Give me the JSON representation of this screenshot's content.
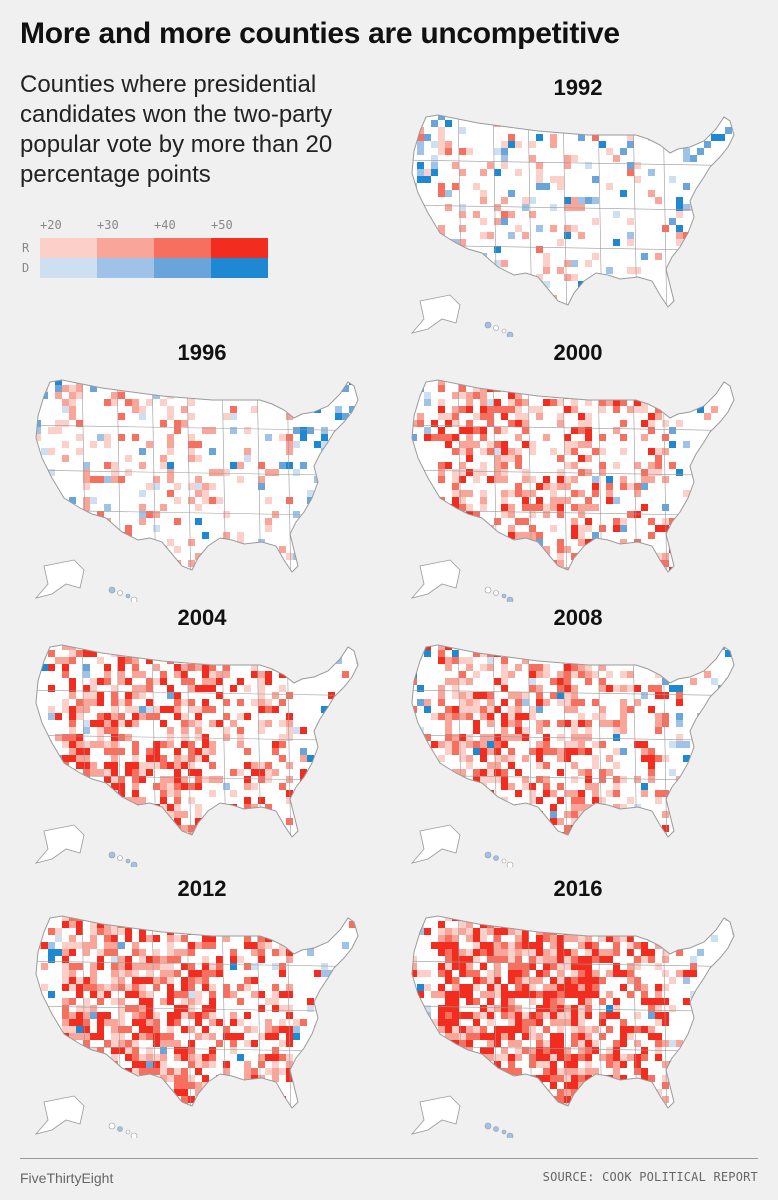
{
  "title": "More and more counties are uncompetitive",
  "subtitle": "Counties where presidential candidates won the two-party popular vote by more than 20 percentage points",
  "legend": {
    "thresholds": [
      "+20",
      "+30",
      "+40",
      "+50"
    ],
    "row_labels": [
      "R",
      "D"
    ],
    "colors": {
      "R": [
        "#fccfc8",
        "#f9a59a",
        "#f76f5f",
        "#f22d20"
      ],
      "D": [
        "#cfdff2",
        "#9fc3e8",
        "#69a5da",
        "#1f88d2"
      ]
    }
  },
  "map_background": {
    "land": "#ffffff",
    "border": "#9a9a9a"
  },
  "maps": [
    {
      "year": "1992",
      "r_intensity": 0.15,
      "d_intensity": 0.3
    },
    {
      "year": "1996",
      "r_intensity": 0.25,
      "d_intensity": 0.28
    },
    {
      "year": "2000",
      "r_intensity": 0.55,
      "d_intensity": 0.12
    },
    {
      "year": "2004",
      "r_intensity": 0.65,
      "d_intensity": 0.1
    },
    {
      "year": "2008",
      "r_intensity": 0.55,
      "d_intensity": 0.18
    },
    {
      "year": "2012",
      "r_intensity": 0.72,
      "d_intensity": 0.16
    },
    {
      "year": "2016",
      "r_intensity": 0.88,
      "d_intensity": 0.12
    }
  ],
  "footer": {
    "brand": "FiveThirtyEight",
    "source": "SOURCE: COOK POLITICAL REPORT"
  }
}
